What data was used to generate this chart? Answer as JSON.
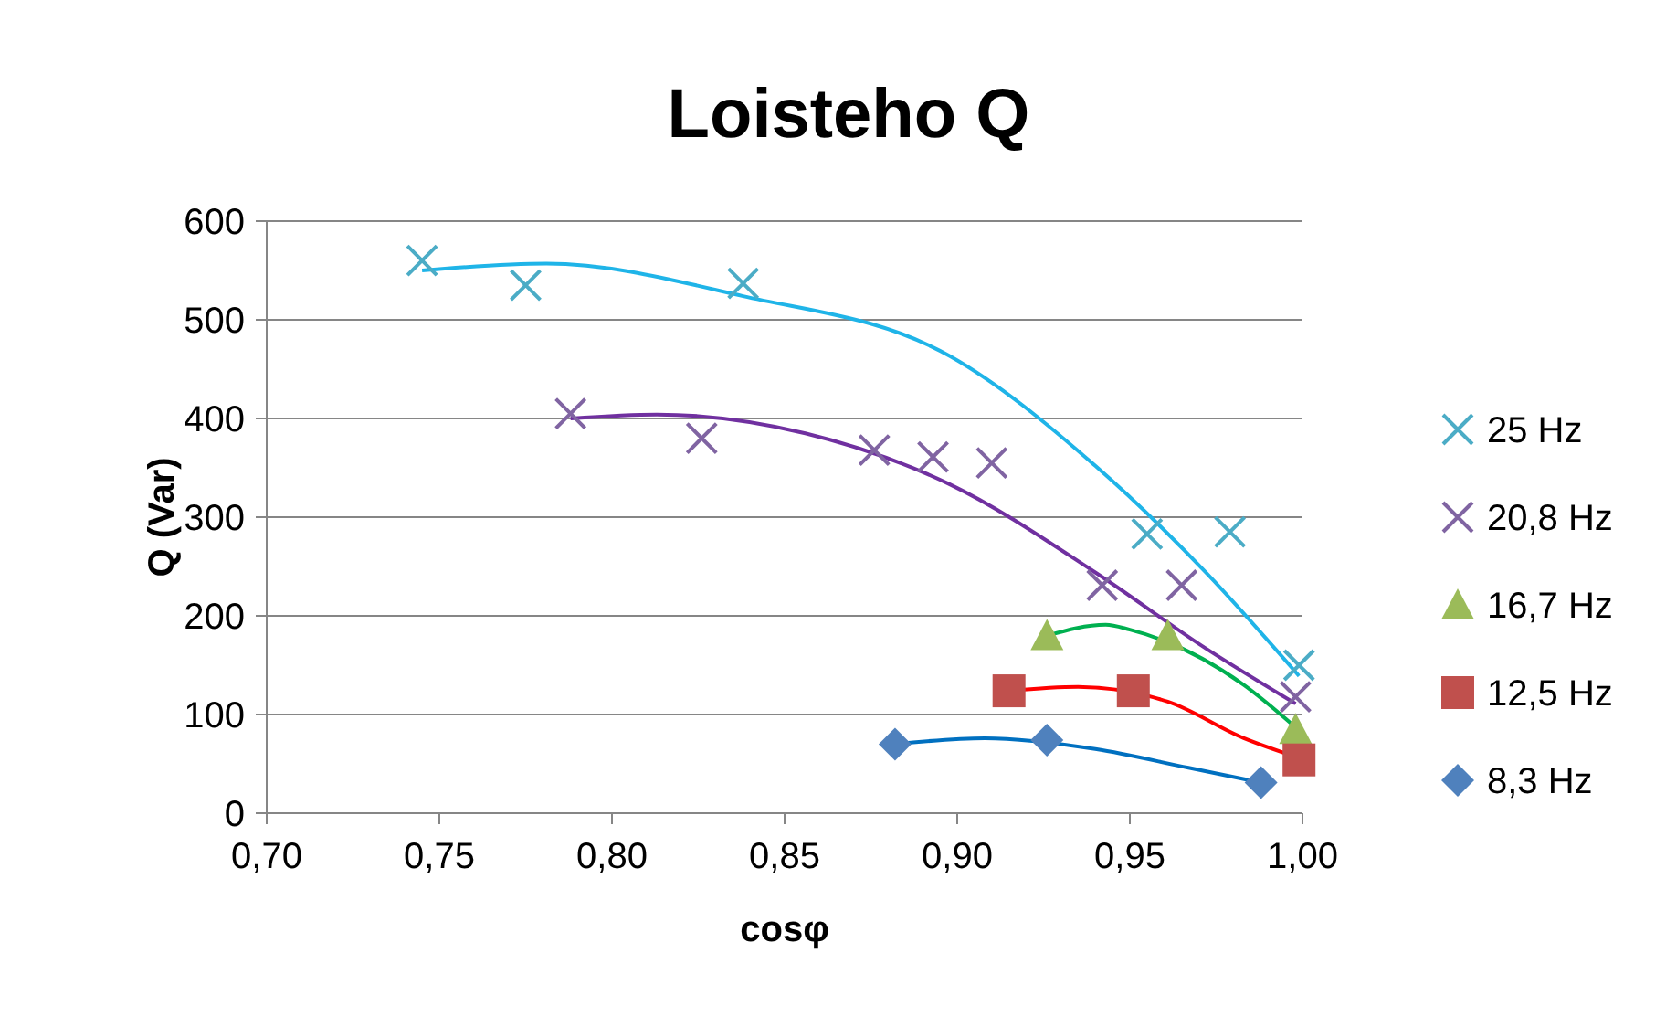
{
  "chart_data": {
    "type": "scatter",
    "title": "Loisteho Q",
    "xlabel": "cosφ",
    "ylabel": "Q (Var)",
    "xlim": [
      0.7,
      1.0
    ],
    "ylim": [
      0,
      600
    ],
    "xticks": [
      {
        "value": 0.7,
        "label": "0,70"
      },
      {
        "value": 0.75,
        "label": "0,75"
      },
      {
        "value": 0.8,
        "label": "0,80"
      },
      {
        "value": 0.85,
        "label": "0,85"
      },
      {
        "value": 0.9,
        "label": "0,90"
      },
      {
        "value": 0.95,
        "label": "0,95"
      },
      {
        "value": 1.0,
        "label": "1,00"
      }
    ],
    "yticks": [
      0,
      100,
      200,
      300,
      400,
      500,
      600
    ],
    "grid": "y",
    "legend": "right",
    "series": [
      {
        "name": "25 Hz",
        "color": "#4bacc6",
        "marker": "cross",
        "x": [
          0.745,
          0.775,
          0.838,
          0.955,
          0.979,
          0.999
        ],
        "values": [
          560,
          535,
          537,
          283,
          285,
          150
        ]
      },
      {
        "name": "20,8 Hz",
        "color": "#8064a2",
        "marker": "cross",
        "x": [
          0.788,
          0.826,
          0.876,
          0.893,
          0.91,
          0.942,
          0.965,
          0.998
        ],
        "values": [
          405,
          380,
          368,
          361,
          355,
          231,
          231,
          118
        ]
      },
      {
        "name": "16,7 Hz",
        "color": "#9bbb59",
        "marker": "triangle",
        "x": [
          0.926,
          0.961,
          0.998
        ],
        "values": [
          180,
          180,
          85
        ]
      },
      {
        "name": "12,5 Hz",
        "color": "#c0504d",
        "marker": "square",
        "x": [
          0.915,
          0.951,
          0.999
        ],
        "values": [
          124,
          124,
          54
        ]
      },
      {
        "name": "8,3 Hz",
        "color": "#4f81bd",
        "marker": "diamond",
        "x": [
          0.882,
          0.926,
          0.988
        ],
        "values": [
          70,
          74,
          31
        ]
      },
      {
        "type": "line",
        "color": "#1fb4e8",
        "marker": "none",
        "x": [
          0.745,
          0.781,
          0.838,
          0.898,
          0.94,
          0.972,
          0.999
        ],
        "values": [
          550,
          557,
          524,
          463,
          352,
          244,
          139
        ]
      },
      {
        "type": "line",
        "color": "#7030a0",
        "marker": "none",
        "x": [
          0.788,
          0.813,
          0.856,
          0.898,
          0.94,
          0.972,
          0.998
        ],
        "values": [
          400,
          404,
          385,
          333,
          244,
          167,
          111
        ]
      },
      {
        "type": "line",
        "color": "#00b050",
        "marker": "none",
        "x": [
          0.926,
          0.943,
          0.95,
          0.983,
          0.998
        ],
        "values": [
          180,
          191,
          186,
          130,
          87
        ]
      },
      {
        "type": "line",
        "color": "#ff0000",
        "marker": "none",
        "x": [
          0.915,
          0.935,
          0.961,
          0.983,
          0.999
        ],
        "values": [
          124,
          128,
          113,
          76,
          56
        ]
      },
      {
        "type": "line",
        "color": "#0070c0",
        "marker": "none",
        "x": [
          0.882,
          0.908,
          0.94,
          0.967,
          0.988
        ],
        "values": [
          70,
          76,
          65,
          46,
          31
        ]
      }
    ]
  }
}
